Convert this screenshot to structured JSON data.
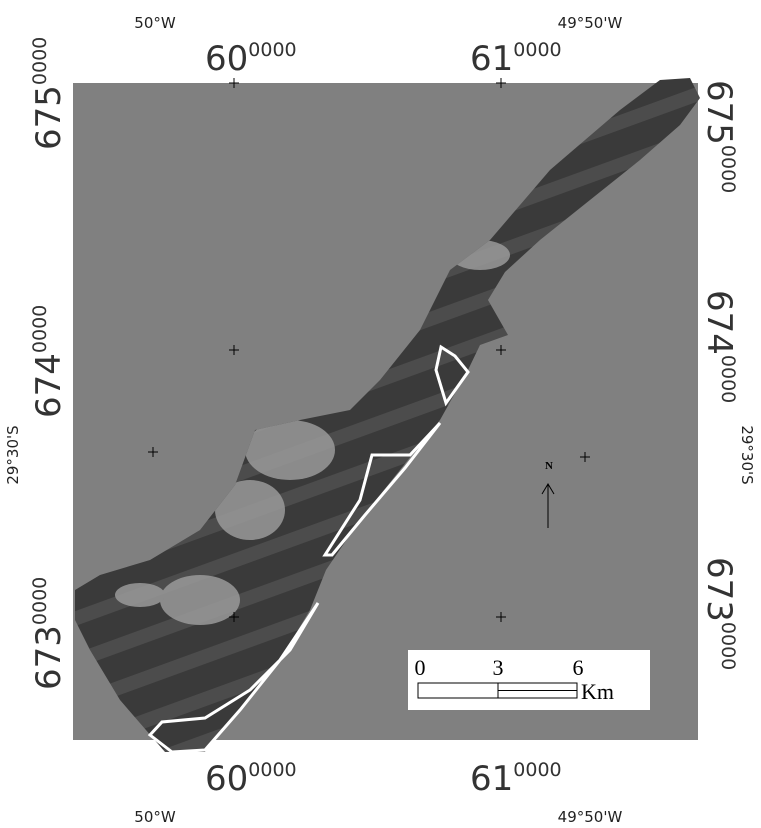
{
  "top": {
    "longitudes": [
      "50°W",
      "49°50'W"
    ],
    "eastings": [
      {
        "major": "60",
        "minor": "0000"
      },
      {
        "major": "61",
        "minor": "0000"
      }
    ]
  },
  "bottom": {
    "longitudes": [
      "50°W",
      "49°50'W"
    ],
    "eastings": [
      {
        "major": "60",
        "minor": "0000"
      },
      {
        "major": "61",
        "minor": "0000"
      }
    ]
  },
  "left": {
    "latitude": "29°30'S",
    "northings": [
      {
        "major": "675",
        "minor": "0000"
      },
      {
        "major": "674",
        "minor": "0000"
      },
      {
        "major": "673",
        "minor": "0000"
      }
    ]
  },
  "right": {
    "latitude": "29°30'S",
    "northings": [
      {
        "major": "675",
        "minor": "0000"
      },
      {
        "major": "674",
        "minor": "0000"
      },
      {
        "major": "673",
        "minor": "0000"
      }
    ]
  },
  "north_arrow": "N",
  "scale_bar": {
    "ticks": [
      "0",
      "3",
      "6"
    ],
    "unit": "Km"
  }
}
